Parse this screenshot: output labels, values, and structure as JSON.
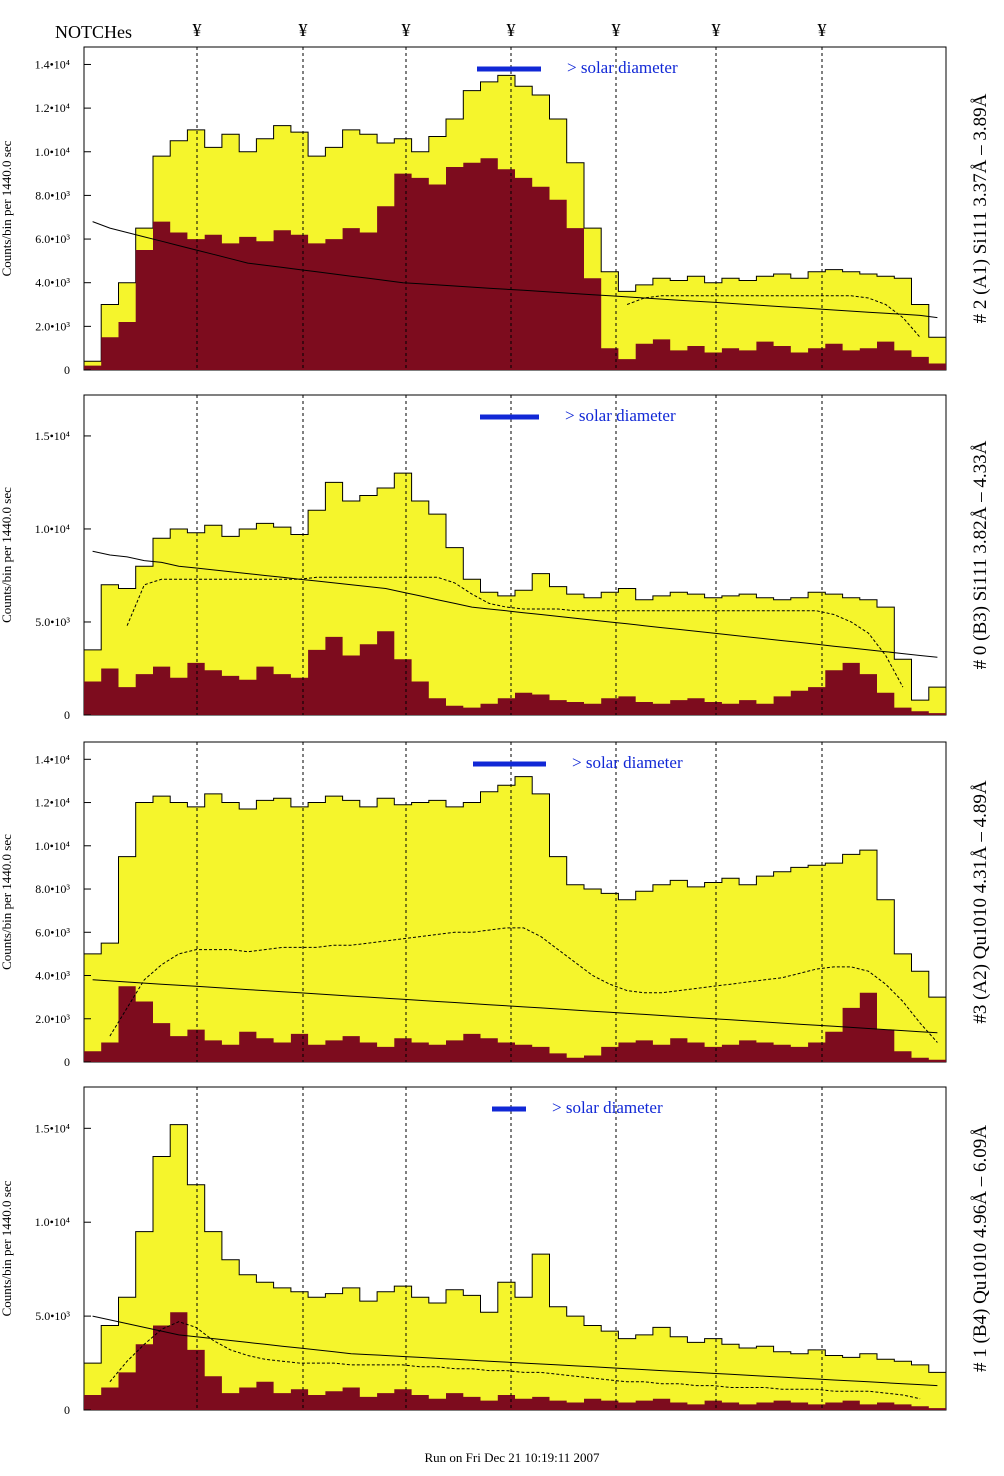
{
  "header": {
    "label": "NOTCHes",
    "notch_symbol": "¥"
  },
  "footer": {
    "run_text": "Run on Fri Dec 21 10:19:11 2007"
  },
  "colors": {
    "fill_total": "#f5f52c",
    "fill_partial": "#7d0c1e",
    "solar_bar": "#1128d6",
    "solar_text": "#1128d6",
    "line": "#000000"
  },
  "chart_data": [
    {
      "type": "area",
      "title": "",
      "right_label": "# 2 (A1) Si111  3.37Å – 3.89Å",
      "ylabel": "Counts/bin per   1440.0 sec",
      "solar_label": "> solar diameter",
      "ylim": [
        0,
        14800
      ],
      "yticks": [
        {
          "v": 0,
          "label": "0"
        },
        {
          "v": 2000,
          "label": "2.0•10³"
        },
        {
          "v": 4000,
          "label": "4.0•10³"
        },
        {
          "v": 6000,
          "label": "6.0•10³"
        },
        {
          "v": 8000,
          "label": "8.0•10³"
        },
        {
          "v": 10000,
          "label": "1.0•10⁴"
        },
        {
          "v": 12000,
          "label": "1.2•10⁴"
        },
        {
          "v": 14000,
          "label": "1.4•10⁴"
        }
      ],
      "series": [
        {
          "name": "",
          "kind": "total",
          "values": [
            400,
            3000,
            4000,
            6500,
            9800,
            10500,
            11000,
            10200,
            10800,
            10000,
            10600,
            11200,
            10900,
            9800,
            10200,
            11000,
            10800,
            10400,
            10600,
            10000,
            10700,
            11500,
            12800,
            13200,
            13500,
            13000,
            12600,
            11500,
            9500,
            6500,
            4500,
            3600,
            3900,
            4200,
            4100,
            4300,
            4000,
            4200,
            4100,
            4300,
            4400,
            4200,
            4500,
            4600,
            4500,
            4400,
            4300,
            4200,
            3000,
            1500
          ]
        },
        {
          "name": "",
          "kind": "partial",
          "values": [
            200,
            1500,
            2200,
            5500,
            6800,
            6300,
            6000,
            6200,
            5800,
            6100,
            5900,
            6400,
            6200,
            5800,
            6000,
            6500,
            6300,
            7500,
            9000,
            8800,
            8500,
            9300,
            9500,
            9700,
            9200,
            8800,
            8400,
            7800,
            6500,
            4200,
            1000,
            500,
            1200,
            1400,
            900,
            1100,
            800,
            1000,
            900,
            1300,
            1100,
            800,
            1000,
            1200,
            900,
            1000,
            1300,
            900,
            600,
            300
          ]
        },
        {
          "name": "",
          "kind": "fit",
          "values": [
            6800,
            6500,
            6300,
            6100,
            5900,
            5700,
            5500,
            5300,
            5100,
            4900,
            4800,
            4700,
            4600,
            4500,
            4400,
            4300,
            4200,
            4100,
            4000,
            3950,
            3900,
            3850,
            3800,
            3750,
            3700,
            3650,
            3600,
            3550,
            3500,
            3450,
            3400,
            3350,
            3300,
            3250,
            3200,
            3150,
            3100,
            3050,
            3000,
            2950,
            2900,
            2850,
            2800,
            2750,
            2700,
            2650,
            2600,
            2550,
            2500,
            2400
          ]
        },
        {
          "name": "",
          "kind": "avg",
          "values": [
            null,
            null,
            null,
            null,
            null,
            null,
            null,
            null,
            null,
            null,
            null,
            null,
            null,
            null,
            null,
            null,
            null,
            null,
            null,
            null,
            null,
            null,
            null,
            null,
            null,
            null,
            null,
            null,
            null,
            null,
            null,
            3000,
            3300,
            3400,
            3400,
            3400,
            3400,
            3400,
            3400,
            3400,
            3400,
            3400,
            3400,
            3400,
            3400,
            3300,
            3000,
            2400,
            1500,
            null
          ]
        }
      ]
    },
    {
      "type": "area",
      "title": "",
      "right_label": "# 0 (B3) Si111  3.82Å – 4.33Å",
      "ylabel": "Counts/bin per   1440.0 sec",
      "solar_label": "> solar diameter",
      "ylim": [
        0,
        17200
      ],
      "yticks": [
        {
          "v": 0,
          "label": "0"
        },
        {
          "v": 5000,
          "label": "5.0•10³"
        },
        {
          "v": 10000,
          "label": "1.0•10⁴"
        },
        {
          "v": 15000,
          "label": "1.5•10⁴"
        }
      ],
      "series": [
        {
          "name": "",
          "kind": "total",
          "values": [
            3500,
            7000,
            6800,
            8000,
            9500,
            10000,
            9800,
            10200,
            9600,
            10000,
            10300,
            10100,
            9700,
            11000,
            12500,
            11500,
            11800,
            12200,
            13000,
            11500,
            10800,
            9000,
            7300,
            6600,
            6400,
            6700,
            7600,
            6900,
            6500,
            6300,
            6600,
            6800,
            6200,
            6400,
            6600,
            6500,
            6300,
            6400,
            6500,
            6300,
            6200,
            6300,
            6600,
            6500,
            6300,
            6200,
            5800,
            3000,
            800,
            1500
          ]
        },
        {
          "name": "",
          "kind": "partial",
          "values": [
            1800,
            2500,
            1500,
            2200,
            2600,
            2000,
            2800,
            2400,
            2100,
            1900,
            2600,
            2200,
            2000,
            3500,
            4200,
            3200,
            3800,
            4500,
            3000,
            1800,
            900,
            500,
            400,
            600,
            900,
            1200,
            1100,
            800,
            700,
            600,
            900,
            1000,
            700,
            600,
            800,
            900,
            700,
            600,
            800,
            600,
            1000,
            1300,
            1500,
            2400,
            2800,
            2200,
            1200,
            400,
            200,
            100
          ]
        },
        {
          "name": "",
          "kind": "fit",
          "values": [
            8800,
            8600,
            8500,
            8300,
            8200,
            8000,
            7900,
            7800,
            7700,
            7600,
            7500,
            7400,
            7300,
            7200,
            7100,
            7000,
            6900,
            6800,
            6600,
            6400,
            6200,
            6000,
            5800,
            5700,
            5600,
            5500,
            5400,
            5300,
            5200,
            5100,
            5000,
            4900,
            4800,
            4700,
            4600,
            4500,
            4400,
            4300,
            4200,
            4100,
            4000,
            3900,
            3800,
            3700,
            3600,
            3500,
            3400,
            3300,
            3200,
            3100
          ]
        },
        {
          "name": "",
          "kind": "avg",
          "values": [
            null,
            null,
            4800,
            7000,
            7300,
            7300,
            7300,
            7300,
            7300,
            7300,
            7300,
            7300,
            7300,
            7400,
            7400,
            7400,
            7400,
            7400,
            7400,
            7400,
            7400,
            7100,
            6500,
            6000,
            5800,
            5700,
            5700,
            5700,
            5600,
            5600,
            5600,
            5600,
            5600,
            5600,
            5600,
            5600,
            5600,
            5600,
            5600,
            5600,
            5600,
            5600,
            5600,
            5400,
            5000,
            4400,
            3200,
            1500,
            null,
            null
          ]
        }
      ]
    },
    {
      "type": "area",
      "title": "",
      "right_label": "#3 (A2) Qu1010  4.31Å – 4.89Å",
      "ylabel": "Counts/bin per   1440.0 sec",
      "solar_label": "> solar diameter",
      "ylim": [
        0,
        14800
      ],
      "yticks": [
        {
          "v": 0,
          "label": "0"
        },
        {
          "v": 2000,
          "label": "2.0•10³"
        },
        {
          "v": 4000,
          "label": "4.0•10³"
        },
        {
          "v": 6000,
          "label": "6.0•10³"
        },
        {
          "v": 8000,
          "label": "8.0•10³"
        },
        {
          "v": 10000,
          "label": "1.0•10⁴"
        },
        {
          "v": 12000,
          "label": "1.2•10⁴"
        },
        {
          "v": 14000,
          "label": "1.4•10⁴"
        }
      ],
      "series": [
        {
          "name": "",
          "kind": "total",
          "values": [
            5000,
            5500,
            9500,
            12000,
            12300,
            12000,
            11800,
            12400,
            12000,
            11700,
            12100,
            12200,
            11800,
            12000,
            12300,
            12100,
            11800,
            12200,
            11900,
            12000,
            12100,
            11800,
            12000,
            12500,
            12800,
            13200,
            12400,
            9500,
            8200,
            8000,
            7800,
            7500,
            7900,
            8200,
            8400,
            8100,
            8300,
            8500,
            8200,
            8600,
            8800,
            9000,
            9100,
            9200,
            9600,
            9800,
            7500,
            5000,
            4200,
            3000
          ]
        },
        {
          "name": "",
          "kind": "partial",
          "values": [
            500,
            900,
            3500,
            2800,
            1800,
            1200,
            1500,
            1000,
            800,
            1400,
            1100,
            900,
            1300,
            800,
            1000,
            1200,
            900,
            700,
            1100,
            900,
            800,
            1000,
            1300,
            1100,
            900,
            800,
            700,
            400,
            200,
            300,
            700,
            900,
            1000,
            800,
            1100,
            900,
            700,
            800,
            1000,
            900,
            800,
            700,
            900,
            1400,
            2500,
            3200,
            1500,
            500,
            200,
            100
          ]
        },
        {
          "name": "",
          "kind": "fit",
          "values": [
            3800,
            3750,
            3700,
            3650,
            3600,
            3550,
            3500,
            3450,
            3400,
            3350,
            3300,
            3250,
            3200,
            3150,
            3100,
            3050,
            3000,
            2950,
            2900,
            2850,
            2800,
            2750,
            2700,
            2650,
            2600,
            2550,
            2500,
            2450,
            2400,
            2350,
            2300,
            2250,
            2200,
            2150,
            2100,
            2050,
            2000,
            1950,
            1900,
            1850,
            1800,
            1750,
            1700,
            1650,
            1600,
            1550,
            1500,
            1450,
            1400,
            1350
          ]
        },
        {
          "name": "",
          "kind": "avg",
          "values": [
            null,
            1200,
            2500,
            3800,
            4500,
            5000,
            5200,
            5200,
            5200,
            5100,
            5200,
            5300,
            5300,
            5300,
            5400,
            5400,
            5500,
            5600,
            5700,
            5800,
            5900,
            6000,
            6000,
            6100,
            6200,
            6200,
            5800,
            5200,
            4600,
            4000,
            3600,
            3300,
            3200,
            3200,
            3300,
            3400,
            3500,
            3600,
            3700,
            3800,
            3900,
            4100,
            4300,
            4400,
            4400,
            4200,
            3600,
            2800,
            1800,
            900
          ]
        }
      ]
    },
    {
      "type": "area",
      "title": "",
      "right_label": "# 1 (B4) Qu1010 4.96Å – 6.09Å",
      "ylabel": "Counts/bin per   1440.0 sec",
      "solar_label": "> solar diameter",
      "ylim": [
        0,
        17200
      ],
      "yticks": [
        {
          "v": 0,
          "label": "0"
        },
        {
          "v": 5000,
          "label": "5.0•10³"
        },
        {
          "v": 10000,
          "label": "1.0•10⁴"
        },
        {
          "v": 15000,
          "label": "1.5•10⁴"
        }
      ],
      "series": [
        {
          "name": "",
          "kind": "total",
          "values": [
            2500,
            4500,
            6000,
            9500,
            13500,
            15200,
            12000,
            9500,
            8000,
            7200,
            6800,
            6500,
            6300,
            6000,
            6200,
            6500,
            5800,
            6300,
            6600,
            6000,
            5700,
            6400,
            6100,
            5200,
            6800,
            6000,
            8300,
            5500,
            5000,
            4500,
            4200,
            3800,
            4000,
            4400,
            3900,
            3600,
            3800,
            3500,
            3300,
            3400,
            3100,
            3000,
            3200,
            2900,
            2800,
            3000,
            2700,
            2600,
            2400,
            2000
          ]
        },
        {
          "name": "",
          "kind": "partial",
          "values": [
            800,
            1200,
            2000,
            3500,
            4500,
            5200,
            3200,
            1800,
            900,
            1200,
            1500,
            900,
            1100,
            800,
            1000,
            1200,
            700,
            900,
            1100,
            800,
            600,
            900,
            700,
            500,
            800,
            600,
            700,
            500,
            400,
            600,
            500,
            400,
            500,
            600,
            400,
            300,
            500,
            400,
            300,
            400,
            500,
            400,
            300,
            400,
            500,
            300,
            400,
            300,
            200,
            100
          ]
        },
        {
          "name": "",
          "kind": "fit",
          "values": [
            5000,
            4800,
            4600,
            4400,
            4200,
            4000,
            3900,
            3800,
            3700,
            3600,
            3500,
            3400,
            3300,
            3200,
            3100,
            3000,
            2950,
            2900,
            2850,
            2800,
            2750,
            2700,
            2650,
            2600,
            2550,
            2500,
            2450,
            2400,
            2350,
            2300,
            2250,
            2200,
            2150,
            2100,
            2050,
            2000,
            1950,
            1900,
            1850,
            1800,
            1750,
            1700,
            1650,
            1600,
            1550,
            1500,
            1450,
            1400,
            1350,
            1300
          ]
        },
        {
          "name": "",
          "kind": "avg",
          "values": [
            null,
            1500,
            2600,
            3500,
            4300,
            4700,
            4400,
            3700,
            3200,
            2900,
            2700,
            2600,
            2500,
            2500,
            2500,
            2400,
            2400,
            2400,
            2400,
            2300,
            2300,
            2200,
            2200,
            2100,
            2100,
            2000,
            2000,
            1900,
            1800,
            1700,
            1600,
            1500,
            1500,
            1400,
            1400,
            1300,
            1300,
            1200,
            1200,
            1200,
            1100,
            1100,
            1100,
            1000,
            1000,
            1000,
            900,
            800,
            600,
            null
          ]
        }
      ]
    }
  ]
}
